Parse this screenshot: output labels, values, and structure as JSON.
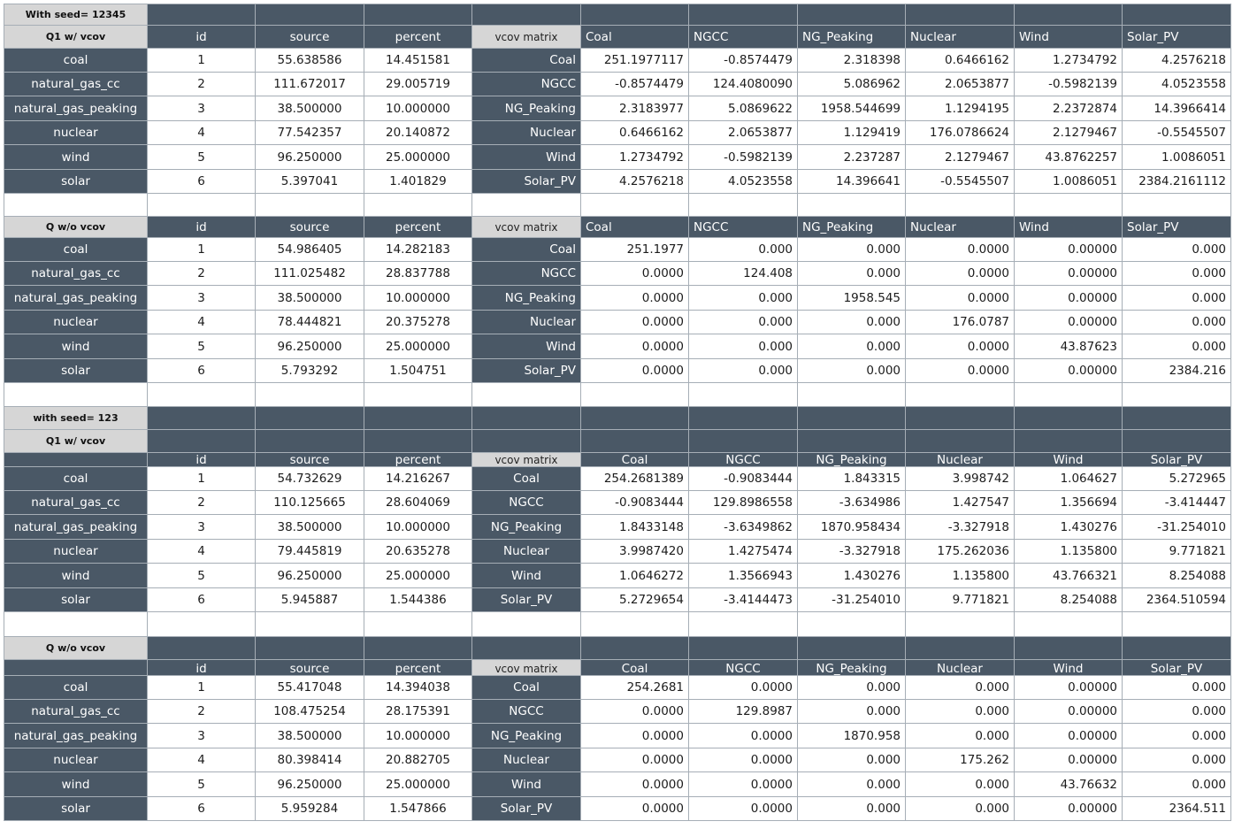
{
  "colors": {
    "header_fill": "#4a5866",
    "section_fill": "#d6d6d6",
    "grid_line": "#a6aeb6"
  },
  "blocks": [
    {
      "top_label": "With seed= 12345",
      "title": "Q1 w/ vcov",
      "header_style": "left",
      "columns": [
        "id",
        "source",
        "percent",
        "vcov matrix",
        "Coal",
        "NGCC",
        "NG_Peaking",
        "Nuclear",
        "Wind",
        "Solar_PV"
      ],
      "rows": [
        {
          "label": "coal",
          "id": "1",
          "source": "55.638586",
          "percent": "14.451581",
          "vcov_label": "Coal",
          "vcov": [
            "251.1977117",
            "-0.8574479",
            "2.318398",
            "0.6466162",
            "1.2734792",
            "4.2576218"
          ]
        },
        {
          "label": "natural_gas_cc",
          "id": "2",
          "source": "111.672017",
          "percent": "29.005719",
          "vcov_label": "NGCC",
          "vcov": [
            "-0.8574479",
            "124.4080090",
            "5.086962",
            "2.0653877",
            "-0.5982139",
            "4.0523558"
          ]
        },
        {
          "label": "natural_gas_peaking",
          "id": "3",
          "source": "38.500000",
          "percent": "10.000000",
          "vcov_label": "NG_Peaking",
          "vcov": [
            "2.3183977",
            "5.0869622",
            "1958.544699",
            "1.1294195",
            "2.2372874",
            "14.3966414"
          ]
        },
        {
          "label": "nuclear",
          "id": "4",
          "source": "77.542357",
          "percent": "20.140872",
          "vcov_label": "Nuclear",
          "vcov": [
            "0.6466162",
            "2.0653877",
            "1.129419",
            "176.0786624",
            "2.1279467",
            "-0.5545507"
          ]
        },
        {
          "label": "wind",
          "id": "5",
          "source": "96.250000",
          "percent": "25.000000",
          "vcov_label": "Wind",
          "vcov": [
            "1.2734792",
            "-0.5982139",
            "2.237287",
            "2.1279467",
            "43.8762257",
            "1.0086051"
          ]
        },
        {
          "label": "solar",
          "id": "6",
          "source": "5.397041",
          "percent": "1.401829",
          "vcov_label": "Solar_PV",
          "vcov": [
            "4.2576218",
            "4.0523558",
            "14.396641",
            "-0.5545507",
            "1.0086051",
            "2384.2161112"
          ]
        }
      ]
    },
    {
      "top_label": "",
      "title": "Q w/o vcov",
      "header_style": "left",
      "columns": [
        "id",
        "source",
        "percent",
        "vcov matrix",
        "Coal",
        "NGCC",
        "NG_Peaking",
        "Nuclear",
        "Wind",
        "Solar_PV"
      ],
      "rows": [
        {
          "label": "coal",
          "id": "1",
          "source": "54.986405",
          "percent": "14.282183",
          "vcov_label": "Coal",
          "vcov": [
            "251.1977",
            "0.000",
            "0.000",
            "0.0000",
            "0.00000",
            "0.000"
          ]
        },
        {
          "label": "natural_gas_cc",
          "id": "2",
          "source": "111.025482",
          "percent": "28.837788",
          "vcov_label": "NGCC",
          "vcov": [
            "0.0000",
            "124.408",
            "0.000",
            "0.0000",
            "0.00000",
            "0.000"
          ]
        },
        {
          "label": "natural_gas_peaking",
          "id": "3",
          "source": "38.500000",
          "percent": "10.000000",
          "vcov_label": "NG_Peaking",
          "vcov": [
            "0.0000",
            "0.000",
            "1958.545",
            "0.0000",
            "0.00000",
            "0.000"
          ]
        },
        {
          "label": "nuclear",
          "id": "4",
          "source": "78.444821",
          "percent": "20.375278",
          "vcov_label": "Nuclear",
          "vcov": [
            "0.0000",
            "0.000",
            "0.000",
            "176.0787",
            "0.00000",
            "0.000"
          ]
        },
        {
          "label": "wind",
          "id": "5",
          "source": "96.250000",
          "percent": "25.000000",
          "vcov_label": "Wind",
          "vcov": [
            "0.0000",
            "0.000",
            "0.000",
            "0.0000",
            "43.87623",
            "0.000"
          ]
        },
        {
          "label": "solar",
          "id": "6",
          "source": "5.793292",
          "percent": "1.504751",
          "vcov_label": "Solar_PV",
          "vcov": [
            "0.0000",
            "0.000",
            "0.000",
            "0.0000",
            "0.00000",
            "2384.216"
          ]
        }
      ]
    },
    {
      "top_label": "with seed= 123",
      "title": "Q1 w/ vcov",
      "header_style": "center",
      "columns": [
        "id",
        "source",
        "percent",
        "vcov matrix",
        "Coal",
        "NGCC",
        "NG_Peaking",
        "Nuclear",
        "Wind",
        "Solar_PV"
      ],
      "rows": [
        {
          "label": "coal",
          "id": "1",
          "source": "54.732629",
          "percent": "14.216267",
          "vcov_label": "Coal",
          "vcov": [
            "254.2681389",
            "-0.9083444",
            "1.843315",
            "3.998742",
            "1.064627",
            "5.272965"
          ]
        },
        {
          "label": "natural_gas_cc",
          "id": "2",
          "source": "110.125665",
          "percent": "28.604069",
          "vcov_label": "NGCC",
          "vcov": [
            "-0.9083444",
            "129.8986558",
            "-3.634986",
            "1.427547",
            "1.356694",
            "-3.414447"
          ]
        },
        {
          "label": "natural_gas_peaking",
          "id": "3",
          "source": "38.500000",
          "percent": "10.000000",
          "vcov_label": "NG_Peaking",
          "vcov": [
            "1.8433148",
            "-3.6349862",
            "1870.958434",
            "-3.327918",
            "1.430276",
            "-31.254010"
          ]
        },
        {
          "label": "nuclear",
          "id": "4",
          "source": "79.445819",
          "percent": "20.635278",
          "vcov_label": "Nuclear",
          "vcov": [
            "3.9987420",
            "1.4275474",
            "-3.327918",
            "175.262036",
            "1.135800",
            "9.771821"
          ]
        },
        {
          "label": "wind",
          "id": "5",
          "source": "96.250000",
          "percent": "25.000000",
          "vcov_label": "Wind",
          "vcov": [
            "1.0646272",
            "1.3566943",
            "1.430276",
            "1.135800",
            "43.766321",
            "8.254088"
          ]
        },
        {
          "label": "solar",
          "id": "6",
          "source": "5.945887",
          "percent": "1.544386",
          "vcov_label": "Solar_PV",
          "vcov": [
            "5.2729654",
            "-3.4144473",
            "-31.254010",
            "9.771821",
            "8.254088",
            "2364.510594"
          ]
        }
      ]
    },
    {
      "top_label": "",
      "title": "Q w/o vcov",
      "header_style": "center",
      "columns": [
        "id",
        "source",
        "percent",
        "vcov matrix",
        "Coal",
        "NGCC",
        "NG_Peaking",
        "Nuclear",
        "Wind",
        "Solar_PV"
      ],
      "rows": [
        {
          "label": "coal",
          "id": "1",
          "source": "55.417048",
          "percent": "14.394038",
          "vcov_label": "Coal",
          "vcov": [
            "254.2681",
            "0.0000",
            "0.000",
            "0.000",
            "0.00000",
            "0.000"
          ]
        },
        {
          "label": "natural_gas_cc",
          "id": "2",
          "source": "108.475254",
          "percent": "28.175391",
          "vcov_label": "NGCC",
          "vcov": [
            "0.0000",
            "129.8987",
            "0.000",
            "0.000",
            "0.00000",
            "0.000"
          ]
        },
        {
          "label": "natural_gas_peaking",
          "id": "3",
          "source": "38.500000",
          "percent": "10.000000",
          "vcov_label": "NG_Peaking",
          "vcov": [
            "0.0000",
            "0.0000",
            "1870.958",
            "0.000",
            "0.00000",
            "0.000"
          ]
        },
        {
          "label": "nuclear",
          "id": "4",
          "source": "80.398414",
          "percent": "20.882705",
          "vcov_label": "Nuclear",
          "vcov": [
            "0.0000",
            "0.0000",
            "0.000",
            "175.262",
            "0.00000",
            "0.000"
          ]
        },
        {
          "label": "wind",
          "id": "5",
          "source": "96.250000",
          "percent": "25.000000",
          "vcov_label": "Wind",
          "vcov": [
            "0.0000",
            "0.0000",
            "0.000",
            "0.000",
            "43.76632",
            "0.000"
          ]
        },
        {
          "label": "solar",
          "id": "6",
          "source": "5.959284",
          "percent": "1.547866",
          "vcov_label": "Solar_PV",
          "vcov": [
            "0.0000",
            "0.0000",
            "0.000",
            "0.000",
            "0.00000",
            "2364.511"
          ]
        }
      ]
    }
  ]
}
